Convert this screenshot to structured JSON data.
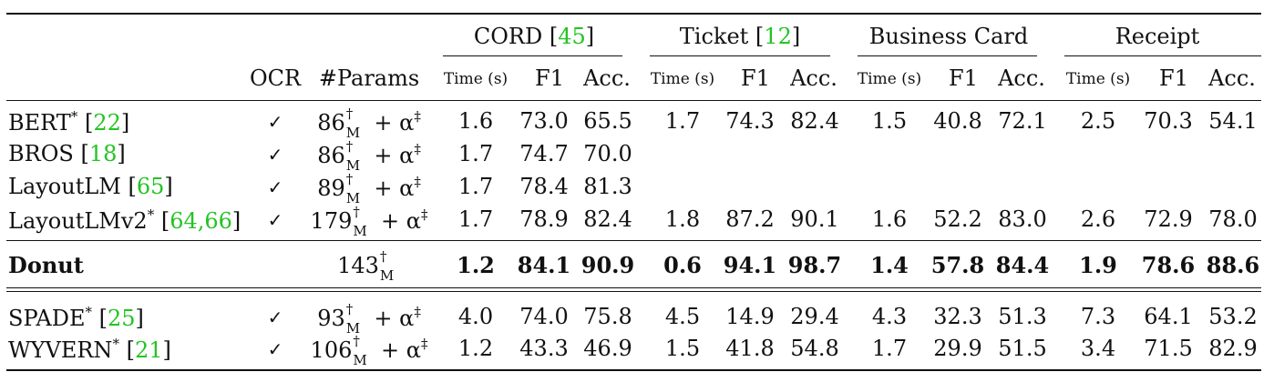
{
  "groups": [
    {
      "label": "CORD",
      "ref": "45"
    },
    {
      "label": "Ticket",
      "ref": "12"
    },
    {
      "label": "Business Card",
      "ref": ""
    },
    {
      "label": "Receipt",
      "ref": ""
    }
  ],
  "subheaders": {
    "ocr": "OCR",
    "params": "#Params",
    "time": "Time (s)",
    "f1": "F1",
    "acc": "Acc."
  },
  "rows": [
    {
      "name": "BERT",
      "star": "*",
      "refs": "22",
      "ocr": "✓",
      "params": {
        "base": "86",
        "dag": "†",
        "m": "M",
        "rest": " + α",
        "ddag": "‡"
      },
      "vals": [
        "1.6",
        "73.0",
        "65.5",
        "1.7",
        "74.3",
        "82.4",
        "1.5",
        "40.8",
        "72.1",
        "2.5",
        "70.3",
        "54.1"
      ]
    },
    {
      "name": "BROS",
      "star": "",
      "refs": "18",
      "ocr": "✓",
      "params": {
        "base": "86",
        "dag": "†",
        "m": "M",
        "rest": " + α",
        "ddag": "‡"
      },
      "vals": [
        "1.7",
        "74.7",
        "70.0",
        "",
        "",
        "",
        "",
        "",
        "",
        "",
        "",
        ""
      ]
    },
    {
      "name": "LayoutLM",
      "star": "",
      "refs": "65",
      "ocr": "✓",
      "params": {
        "base": "89",
        "dag": "†",
        "m": "M",
        "rest": " + α",
        "ddag": "‡"
      },
      "vals": [
        "1.7",
        "78.4",
        "81.3",
        "",
        "",
        "",
        "",
        "",
        "",
        "",
        "",
        ""
      ]
    },
    {
      "name": "LayoutLMv2",
      "star": "*",
      "refs": "64,66",
      "ocr": "✓",
      "params": {
        "base": "179",
        "dag": "†",
        "m": "M",
        "rest": " + α",
        "ddag": "‡"
      },
      "vals": [
        "1.7",
        "78.9",
        "82.4",
        "1.8",
        "87.2",
        "90.1",
        "1.6",
        "52.2",
        "83.0",
        "2.6",
        "72.9",
        "78.0"
      ]
    },
    {
      "name": "Donut",
      "star": "",
      "refs": "",
      "ocr": "",
      "params": {
        "base": "143",
        "dag": "†",
        "m": "M",
        "rest": "",
        "ddag": ""
      },
      "vals": [
        "1.2",
        "84.1",
        "90.9",
        "0.6",
        "94.1",
        "98.7",
        "1.4",
        "57.8",
        "84.4",
        "1.9",
        "78.6",
        "88.6"
      ]
    },
    {
      "name": "SPADE",
      "star": "*",
      "refs": "25",
      "ocr": "✓",
      "params": {
        "base": "93",
        "dag": "†",
        "m": "M",
        "rest": " + α",
        "ddag": "‡"
      },
      "vals": [
        "4.0",
        "74.0",
        "75.8",
        "4.5",
        "14.9",
        "29.4",
        "4.3",
        "32.3",
        "51.3",
        "7.3",
        "64.1",
        "53.2"
      ]
    },
    {
      "name": "WYVERN",
      "star": "*",
      "refs": "21",
      "ocr": "✓",
      "params": {
        "base": "106",
        "dag": "†",
        "m": "M",
        "rest": " + α",
        "ddag": "‡"
      },
      "vals": [
        "1.2",
        "43.3",
        "46.9",
        "1.5",
        "41.8",
        "54.8",
        "1.7",
        "29.9",
        "51.5",
        "3.4",
        "71.5",
        "82.9"
      ]
    }
  ]
}
